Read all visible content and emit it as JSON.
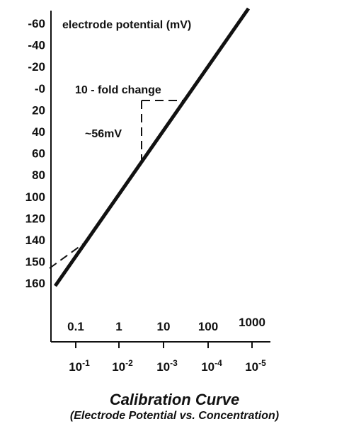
{
  "chart_data": {
    "type": "line",
    "caption_title": "Calibration Curve",
    "caption_subtitle": "(Electrode Potential vs. Concentration)",
    "ylabel": "electrode potential (mV)",
    "y_ticks": [
      "-60",
      "-40",
      "-20",
      "-0",
      "20",
      "40",
      "60",
      "80",
      "100",
      "120",
      "140",
      "150",
      "160"
    ],
    "x_ticks_concentration": [
      "0.1",
      "1",
      "10",
      "100",
      "1000"
    ],
    "x_ticks_activity": [
      {
        "base": "10",
        "exp": "-1"
      },
      {
        "base": "10",
        "exp": "-2"
      },
      {
        "base": "10",
        "exp": "-3"
      },
      {
        "base": "10",
        "exp": "-4"
      },
      {
        "base": "10",
        "exp": "-5"
      }
    ],
    "annotations": {
      "fold_change": "10 - fold change",
      "slope": "~56mV"
    },
    "colors": {
      "line": "#111111",
      "axis": "#111111",
      "background": "#ffffff"
    }
  }
}
